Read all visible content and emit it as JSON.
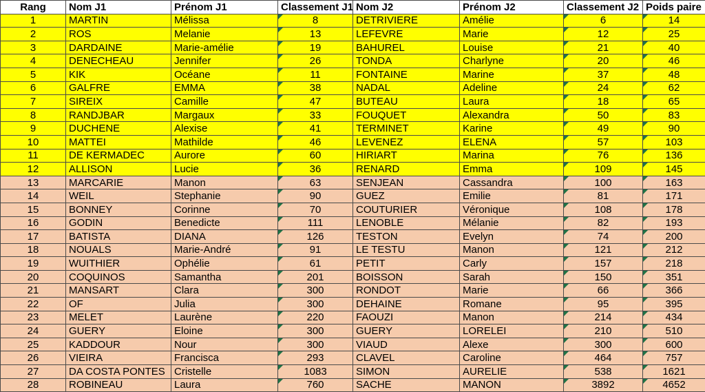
{
  "colors": {
    "row_yellow": "#FFFF00",
    "row_tan": "#F6CBAC",
    "header_bg": "#FFFFFF",
    "grid_line": "#4A4A4A",
    "flag_green": "#217346",
    "text": "#000000"
  },
  "table": {
    "columns": [
      {
        "key": "rang",
        "label": "Rang",
        "header_align": "center",
        "cell_align": "center",
        "flag": false
      },
      {
        "key": "nom_j1",
        "label": "Nom J1",
        "header_align": "left",
        "cell_align": "left",
        "flag": false
      },
      {
        "key": "prenom_j1",
        "label": "Prénom J1",
        "header_align": "left",
        "cell_align": "left",
        "flag": false
      },
      {
        "key": "classement_j1",
        "label": "Classement J1",
        "header_align": "left",
        "cell_align": "center",
        "flag": true
      },
      {
        "key": "nom_j2",
        "label": "Nom J2",
        "header_align": "left",
        "cell_align": "left",
        "flag": false
      },
      {
        "key": "prenom_j2",
        "label": "Prénom J2",
        "header_align": "left",
        "cell_align": "left",
        "flag": false
      },
      {
        "key": "classement_j2",
        "label": "Classement J2",
        "header_align": "left",
        "cell_align": "center",
        "flag": true
      },
      {
        "key": "poids_paire",
        "label": "Poids paire",
        "header_align": "left",
        "cell_align": "center",
        "flag": true
      }
    ],
    "rows": [
      {
        "highlight": "yellow",
        "rang": "1",
        "nom_j1": "MARTIN",
        "prenom_j1": "Mélissa",
        "classement_j1": "8",
        "nom_j2": "DETRIVIERE",
        "prenom_j2": "Amélie",
        "classement_j2": "6",
        "poids_paire": "14"
      },
      {
        "highlight": "yellow",
        "rang": "2",
        "nom_j1": "ROS",
        "prenom_j1": "Melanie",
        "classement_j1": "13",
        "nom_j2": "LEFEVRE",
        "prenom_j2": "Marie",
        "classement_j2": "12",
        "poids_paire": "25"
      },
      {
        "highlight": "yellow",
        "rang": "3",
        "nom_j1": "DARDAINE",
        "prenom_j1": "Marie-amélie",
        "classement_j1": "19",
        "nom_j2": "BAHUREL",
        "prenom_j2": "Louise",
        "classement_j2": "21",
        "poids_paire": "40"
      },
      {
        "highlight": "yellow",
        "rang": "4",
        "nom_j1": "DENECHEAU",
        "prenom_j1": "Jennifer",
        "classement_j1": "26",
        "nom_j2": "TONDA",
        "prenom_j2": "Charlyne",
        "classement_j2": "20",
        "poids_paire": "46"
      },
      {
        "highlight": "yellow",
        "rang": "5",
        "nom_j1": "KIK",
        "prenom_j1": "Océane",
        "classement_j1": "11",
        "nom_j2": "FONTAINE",
        "prenom_j2": "Marine",
        "classement_j2": "37",
        "poids_paire": "48"
      },
      {
        "highlight": "yellow",
        "rang": "6",
        "nom_j1": "GALFRE",
        "prenom_j1": "EMMA",
        "classement_j1": "38",
        "nom_j2": "NADAL",
        "prenom_j2": "Adeline",
        "classement_j2": "24",
        "poids_paire": "62"
      },
      {
        "highlight": "yellow",
        "rang": "7",
        "nom_j1": "SIREIX",
        "prenom_j1": "Camille",
        "classement_j1": "47",
        "nom_j2": "BUTEAU",
        "prenom_j2": "Laura",
        "classement_j2": "18",
        "poids_paire": "65"
      },
      {
        "highlight": "yellow",
        "rang": "8",
        "nom_j1": "RANDJBAR",
        "prenom_j1": "Margaux",
        "classement_j1": "33",
        "nom_j2": "FOUQUET",
        "prenom_j2": "Alexandra",
        "classement_j2": "50",
        "poids_paire": "83"
      },
      {
        "highlight": "yellow",
        "rang": "9",
        "nom_j1": "DUCHENE",
        "prenom_j1": "Alexise",
        "classement_j1": "41",
        "nom_j2": "TERMINET",
        "prenom_j2": "Karine",
        "classement_j2": "49",
        "poids_paire": "90"
      },
      {
        "highlight": "yellow",
        "rang": "10",
        "nom_j1": "MATTEI",
        "prenom_j1": "Mathilde",
        "classement_j1": "46",
        "nom_j2": "LEVENEZ",
        "prenom_j2": "ELENA",
        "classement_j2": "57",
        "poids_paire": "103"
      },
      {
        "highlight": "yellow",
        "rang": "11",
        "nom_j1": "DE KERMADEC",
        "prenom_j1": "Aurore",
        "classement_j1": "60",
        "nom_j2": "HIRIART",
        "prenom_j2": "Marina",
        "classement_j2": "76",
        "poids_paire": "136"
      },
      {
        "highlight": "yellow",
        "rang": "12",
        "nom_j1": "ALLISON",
        "prenom_j1": "Lucie",
        "classement_j1": "36",
        "nom_j2": "RENARD",
        "prenom_j2": "Emma",
        "classement_j2": "109",
        "poids_paire": "145"
      },
      {
        "highlight": "tan",
        "rang": "13",
        "nom_j1": "MARCARIE",
        "prenom_j1": "Manon",
        "classement_j1": "63",
        "nom_j2": "SENJEAN",
        "prenom_j2": "Cassandra",
        "classement_j2": "100",
        "poids_paire": "163"
      },
      {
        "highlight": "tan",
        "rang": "14",
        "nom_j1": "WEIL",
        "prenom_j1": "Stephanie",
        "classement_j1": "90",
        "nom_j2": "GUEZ",
        "prenom_j2": "Emilie",
        "classement_j2": "81",
        "poids_paire": "171"
      },
      {
        "highlight": "tan",
        "rang": "15",
        "nom_j1": "BONNEY",
        "prenom_j1": "Corinne",
        "classement_j1": "70",
        "nom_j2": "COUTURIER",
        "prenom_j2": "Véronique",
        "classement_j2": "108",
        "poids_paire": "178"
      },
      {
        "highlight": "tan",
        "rang": "16",
        "nom_j1": "GODIN",
        "prenom_j1": "Benedicte",
        "classement_j1": "111",
        "nom_j2": "LENOBLE",
        "prenom_j2": "Mélanie",
        "classement_j2": "82",
        "poids_paire": "193"
      },
      {
        "highlight": "tan",
        "rang": "17",
        "nom_j1": "BATISTA",
        "prenom_j1": "DIANA",
        "classement_j1": "126",
        "nom_j2": "TESTON",
        "prenom_j2": "Evelyn",
        "classement_j2": "74",
        "poids_paire": "200"
      },
      {
        "highlight": "tan",
        "rang": "18",
        "nom_j1": "NOUALS",
        "prenom_j1": "Marie-André",
        "classement_j1": "91",
        "nom_j2": "LE TESTU",
        "prenom_j2": "Manon",
        "classement_j2": "121",
        "poids_paire": "212"
      },
      {
        "highlight": "tan",
        "rang": "19",
        "nom_j1": "WUITHIER",
        "prenom_j1": "Ophélie",
        "classement_j1": "61",
        "nom_j2": "PETIT",
        "prenom_j2": "Carly",
        "classement_j2": "157",
        "poids_paire": "218"
      },
      {
        "highlight": "tan",
        "rang": "20",
        "nom_j1": "COQUINOS",
        "prenom_j1": "Samantha",
        "classement_j1": "201",
        "nom_j2": "BOISSON",
        "prenom_j2": "Sarah",
        "classement_j2": "150",
        "poids_paire": "351"
      },
      {
        "highlight": "tan",
        "rang": "21",
        "nom_j1": "MANSART",
        "prenom_j1": "Clara",
        "classement_j1": "300",
        "nom_j2": "RONDOT",
        "prenom_j2": "Marie",
        "classement_j2": "66",
        "poids_paire": "366"
      },
      {
        "highlight": "tan",
        "rang": "22",
        "nom_j1": "OF",
        "prenom_j1": "Julia",
        "classement_j1": "300",
        "nom_j2": "DEHAINE",
        "prenom_j2": "Romane",
        "classement_j2": "95",
        "poids_paire": "395"
      },
      {
        "highlight": "tan",
        "rang": "23",
        "nom_j1": "MELET",
        "prenom_j1": "Laurène",
        "classement_j1": "220",
        "nom_j2": "FAOUZI",
        "prenom_j2": "Manon",
        "classement_j2": "214",
        "poids_paire": "434"
      },
      {
        "highlight": "tan",
        "rang": "24",
        "nom_j1": "GUERY",
        "prenom_j1": "Eloine",
        "classement_j1": "300",
        "nom_j2": "GUERY",
        "prenom_j2": "LORELEI",
        "classement_j2": "210",
        "poids_paire": "510"
      },
      {
        "highlight": "tan",
        "rang": "25",
        "nom_j1": "KADDOUR",
        "prenom_j1": "Nour",
        "classement_j1": "300",
        "nom_j2": "VIAUD",
        "prenom_j2": "Alexe",
        "classement_j2": "300",
        "poids_paire": "600"
      },
      {
        "highlight": "tan",
        "rang": "26",
        "nom_j1": "VIEIRA",
        "prenom_j1": "Francisca",
        "classement_j1": "293",
        "nom_j2": "CLAVEL",
        "prenom_j2": "Caroline",
        "classement_j2": "464",
        "poids_paire": "757"
      },
      {
        "highlight": "tan",
        "rang": "27",
        "nom_j1": "DA COSTA PONTES",
        "prenom_j1": "Cristelle",
        "classement_j1": "1083",
        "nom_j2": "SIMON",
        "prenom_j2": "AURELIE",
        "classement_j2": "538",
        "poids_paire": "1621"
      },
      {
        "highlight": "tan",
        "rang": "28",
        "nom_j1": "ROBINEAU",
        "prenom_j1": "Laura",
        "classement_j1": "760",
        "nom_j2": "SACHE",
        "prenom_j2": "MANON",
        "classement_j2": "3892",
        "poids_paire": "4652"
      }
    ]
  }
}
